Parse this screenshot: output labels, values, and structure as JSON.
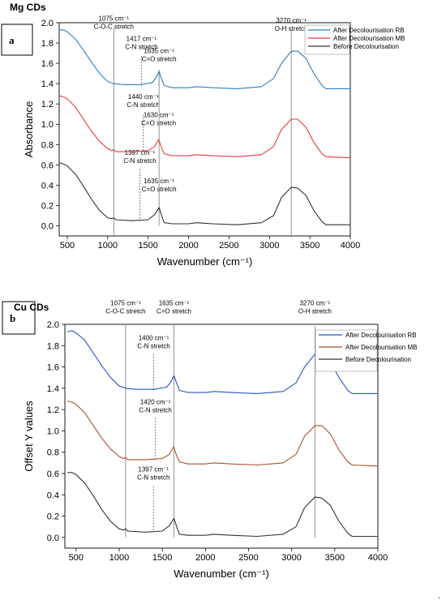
{
  "chart_data": [
    {
      "type": "line",
      "panel_letter": "a",
      "title": "Mg CDs",
      "xlabel": "Wavenumber (cm⁻¹)",
      "ylabel": "Absorbance",
      "xlim": [
        400,
        4000
      ],
      "ylim": [
        -0.1,
        2.0
      ],
      "x_ticks": [
        500,
        1000,
        1500,
        2000,
        2500,
        3000,
        3500,
        4000
      ],
      "y_ticks": [
        0.0,
        0.2,
        0.4,
        0.6,
        0.8,
        1.0,
        1.2,
        1.4,
        1.6,
        1.8,
        2.0
      ],
      "legend_position": "top-right",
      "series": [
        {
          "name": "After Decolourisation RB",
          "color": "#2e7fc4",
          "points": [
            [
              400,
              1.93
            ],
            [
              450,
              1.93
            ],
            [
              500,
              1.91
            ],
            [
              600,
              1.84
            ],
            [
              700,
              1.73
            ],
            [
              800,
              1.61
            ],
            [
              900,
              1.5
            ],
            [
              1000,
              1.42
            ],
            [
              1075,
              1.4
            ],
            [
              1200,
              1.39
            ],
            [
              1400,
              1.39
            ],
            [
              1550,
              1.41
            ],
            [
              1600,
              1.46
            ],
            [
              1635,
              1.52
            ],
            [
              1665,
              1.45
            ],
            [
              1700,
              1.38
            ],
            [
              1800,
              1.36
            ],
            [
              2000,
              1.36
            ],
            [
              2100,
              1.37
            ],
            [
              2300,
              1.36
            ],
            [
              2600,
              1.35
            ],
            [
              2900,
              1.37
            ],
            [
              3050,
              1.45
            ],
            [
              3150,
              1.6
            ],
            [
              3270,
              1.72
            ],
            [
              3350,
              1.72
            ],
            [
              3450,
              1.65
            ],
            [
              3550,
              1.5
            ],
            [
              3650,
              1.38
            ],
            [
              3700,
              1.35
            ],
            [
              4000,
              1.35
            ]
          ]
        },
        {
          "name": "After Decolourisation MB",
          "color": "#e8383c",
          "points": [
            [
              400,
              1.28
            ],
            [
              450,
              1.27
            ],
            [
              500,
              1.25
            ],
            [
              600,
              1.17
            ],
            [
              700,
              1.05
            ],
            [
              800,
              0.93
            ],
            [
              900,
              0.83
            ],
            [
              1000,
              0.76
            ],
            [
              1050,
              0.74
            ],
            [
              1075,
              0.75
            ],
            [
              1100,
              0.73
            ],
            [
              1300,
              0.73
            ],
            [
              1500,
              0.74
            ],
            [
              1580,
              0.78
            ],
            [
              1630,
              0.85
            ],
            [
              1670,
              0.76
            ],
            [
              1700,
              0.71
            ],
            [
              1800,
              0.69
            ],
            [
              2000,
              0.69
            ],
            [
              2100,
              0.7
            ],
            [
              2300,
              0.69
            ],
            [
              2600,
              0.68
            ],
            [
              2900,
              0.7
            ],
            [
              3050,
              0.78
            ],
            [
              3150,
              0.95
            ],
            [
              3270,
              1.05
            ],
            [
              3350,
              1.05
            ],
            [
              3450,
              0.97
            ],
            [
              3550,
              0.82
            ],
            [
              3650,
              0.71
            ],
            [
              3700,
              0.68
            ],
            [
              4000,
              0.67
            ]
          ]
        },
        {
          "name": "Before Decolourisation",
          "color": "#333333",
          "points": [
            [
              400,
              0.62
            ],
            [
              450,
              0.61
            ],
            [
              500,
              0.59
            ],
            [
              600,
              0.51
            ],
            [
              700,
              0.39
            ],
            [
              800,
              0.26
            ],
            [
              900,
              0.15
            ],
            [
              1000,
              0.08
            ],
            [
              1050,
              0.07
            ],
            [
              1075,
              0.08
            ],
            [
              1100,
              0.06
            ],
            [
              1300,
              0.05
            ],
            [
              1500,
              0.06
            ],
            [
              1580,
              0.11
            ],
            [
              1635,
              0.18
            ],
            [
              1680,
              0.07
            ],
            [
              1700,
              0.03
            ],
            [
              1800,
              0.02
            ],
            [
              2000,
              0.02
            ],
            [
              2100,
              0.03
            ],
            [
              2300,
              0.02
            ],
            [
              2600,
              0.01
            ],
            [
              2900,
              0.03
            ],
            [
              3050,
              0.1
            ],
            [
              3150,
              0.28
            ],
            [
              3270,
              0.38
            ],
            [
              3350,
              0.37
            ],
            [
              3450,
              0.3
            ],
            [
              3550,
              0.15
            ],
            [
              3650,
              0.04
            ],
            [
              3700,
              0.01
            ],
            [
              4000,
              0.01
            ]
          ]
        }
      ],
      "annotations": [
        {
          "x": 1075,
          "line": "solid",
          "line_top": 1.95,
          "label_lines": [
            "1075 cm⁻¹",
            "C-O-C stretch"
          ],
          "label_y": 2.02
        },
        {
          "x": 1417,
          "line": "dotted",
          "line_top": 1.67,
          "line_bottom": 1.38,
          "label_lines": [
            "1417 cm⁻¹",
            "C-N stretch"
          ],
          "label_y": 1.82
        },
        {
          "x": 1635,
          "line": "dotted",
          "line_top": 1.51,
          "line_bottom": 1.38,
          "label_lines": [
            "1635 cm⁻¹",
            "C=O stretch"
          ],
          "label_y": 1.7
        },
        {
          "x": 1440,
          "line": "dotted",
          "line_top": 1.09,
          "line_bottom": 0.73,
          "label_lines": [
            "1440 cm⁻¹",
            "C-N stretch"
          ],
          "label_y": 1.25
        },
        {
          "x": 1630,
          "line": "none",
          "label_lines": [
            "1630 cm⁻¹",
            "C=O stretch"
          ],
          "label_y": 1.07
        },
        {
          "x": 1397,
          "line": "dotted",
          "line_top": 0.56,
          "line_bottom": 0.05,
          "label_lines": [
            "1397 cm⁻¹",
            "C-N stretch"
          ],
          "label_y": 0.7
        },
        {
          "x": 1635,
          "line": "none",
          "label_lines": [
            "1635 cm⁻¹",
            "C=O stretch"
          ],
          "label_y": 0.42
        },
        {
          "x": 1635,
          "line": "solid",
          "line_top": 1.54,
          "line_bottom": 0.0,
          "label_lines": [],
          "label_y": 0
        },
        {
          "x": 3270,
          "line": "solid",
          "line_top": 1.93,
          "label_lines": [
            "3270 cm⁻¹",
            "O-H stretch"
          ],
          "label_y": 2.0
        }
      ]
    },
    {
      "type": "line",
      "panel_letter": "b",
      "title": "Cu CDs",
      "xlabel": "Wavenumber (cm⁻¹)",
      "ylabel": "Offset Y values",
      "xlim": [
        370,
        4000
      ],
      "ylim": [
        -0.1,
        2.0
      ],
      "x_ticks": [
        500,
        1000,
        1500,
        2000,
        2500,
        3000,
        3500,
        4000
      ],
      "y_ticks": [
        0.0,
        0.2,
        0.4,
        0.6,
        0.8,
        1.0,
        1.2,
        1.4,
        1.6,
        1.8,
        2.0
      ],
      "legend_position": "top-right",
      "series": [
        {
          "name": "After Decolourisation RB",
          "color": "#2a52c9",
          "points": [
            [
              400,
              1.93
            ],
            [
              450,
              1.94
            ],
            [
              500,
              1.92
            ],
            [
              600,
              1.85
            ],
            [
              700,
              1.73
            ],
            [
              800,
              1.61
            ],
            [
              900,
              1.5
            ],
            [
              1000,
              1.42
            ],
            [
              1075,
              1.4
            ],
            [
              1200,
              1.39
            ],
            [
              1400,
              1.39
            ],
            [
              1550,
              1.41
            ],
            [
              1600,
              1.46
            ],
            [
              1635,
              1.52
            ],
            [
              1665,
              1.45
            ],
            [
              1700,
              1.38
            ],
            [
              1800,
              1.36
            ],
            [
              2000,
              1.36
            ],
            [
              2100,
              1.37
            ],
            [
              2300,
              1.36
            ],
            [
              2600,
              1.35
            ],
            [
              2900,
              1.37
            ],
            [
              3050,
              1.45
            ],
            [
              3150,
              1.6
            ],
            [
              3270,
              1.72
            ],
            [
              3350,
              1.72
            ],
            [
              3450,
              1.65
            ],
            [
              3550,
              1.5
            ],
            [
              3650,
              1.38
            ],
            [
              3700,
              1.35
            ],
            [
              4000,
              1.35
            ]
          ]
        },
        {
          "name": "After Decolourisation MB",
          "color": "#a8502b",
          "points": [
            [
              400,
              1.28
            ],
            [
              450,
              1.27
            ],
            [
              500,
              1.25
            ],
            [
              600,
              1.17
            ],
            [
              700,
              1.05
            ],
            [
              800,
              0.93
            ],
            [
              900,
              0.83
            ],
            [
              1000,
              0.76
            ],
            [
              1050,
              0.74
            ],
            [
              1075,
              0.75
            ],
            [
              1100,
              0.73
            ],
            [
              1300,
              0.73
            ],
            [
              1500,
              0.74
            ],
            [
              1580,
              0.78
            ],
            [
              1630,
              0.85
            ],
            [
              1670,
              0.76
            ],
            [
              1700,
              0.71
            ],
            [
              1800,
              0.69
            ],
            [
              2000,
              0.69
            ],
            [
              2100,
              0.7
            ],
            [
              2300,
              0.69
            ],
            [
              2600,
              0.68
            ],
            [
              2900,
              0.7
            ],
            [
              3050,
              0.78
            ],
            [
              3150,
              0.95
            ],
            [
              3270,
              1.05
            ],
            [
              3350,
              1.05
            ],
            [
              3450,
              0.97
            ],
            [
              3550,
              0.82
            ],
            [
              3650,
              0.71
            ],
            [
              3700,
              0.68
            ],
            [
              4000,
              0.67
            ]
          ]
        },
        {
          "name": "Before Decolourisation",
          "color": "#333333",
          "points": [
            [
              400,
              0.61
            ],
            [
              450,
              0.61
            ],
            [
              500,
              0.59
            ],
            [
              600,
              0.51
            ],
            [
              700,
              0.39
            ],
            [
              800,
              0.26
            ],
            [
              900,
              0.15
            ],
            [
              1000,
              0.08
            ],
            [
              1050,
              0.07
            ],
            [
              1075,
              0.08
            ],
            [
              1100,
              0.06
            ],
            [
              1300,
              0.05
            ],
            [
              1500,
              0.06
            ],
            [
              1580,
              0.11
            ],
            [
              1635,
              0.18
            ],
            [
              1680,
              0.07
            ],
            [
              1700,
              0.03
            ],
            [
              1800,
              0.02
            ],
            [
              2000,
              0.02
            ],
            [
              2100,
              0.03
            ],
            [
              2300,
              0.02
            ],
            [
              2600,
              0.01
            ],
            [
              2900,
              0.03
            ],
            [
              3050,
              0.1
            ],
            [
              3150,
              0.28
            ],
            [
              3270,
              0.38
            ],
            [
              3350,
              0.37
            ],
            [
              3450,
              0.3
            ],
            [
              3550,
              0.15
            ],
            [
              3650,
              0.04
            ],
            [
              3700,
              0.01
            ],
            [
              4000,
              0.01
            ]
          ]
        }
      ],
      "annotations": [
        {
          "x": 1075,
          "line": "solid",
          "line_top": 2.0,
          "line_bottom": 0.0,
          "label_lines": [
            "1075 cm⁻¹",
            "C-O-C stretch"
          ],
          "label_y": 2.18
        },
        {
          "x": 1635,
          "line": "solid",
          "line_top": 2.0,
          "line_bottom": 0.0,
          "label_lines": [
            "1635 cm⁻¹",
            "C=O stretch"
          ],
          "label_y": 2.18
        },
        {
          "x": 1400,
          "line": "dotted",
          "line_top": 1.72,
          "line_bottom": 1.38,
          "label_lines": [
            "1400 cm⁻¹",
            "C-N stretch"
          ],
          "label_y": 1.85
        },
        {
          "x": 1420,
          "line": "dotted",
          "line_top": 1.12,
          "line_bottom": 0.73,
          "label_lines": [
            "1420 cm⁻¹",
            "C-N stretch"
          ],
          "label_y": 1.25
        },
        {
          "x": 1397,
          "line": "dotted",
          "line_top": 0.48,
          "line_bottom": 0.05,
          "label_lines": [
            "1397 cm⁻¹",
            "C-N stretch"
          ],
          "label_y": 0.62
        },
        {
          "x": 3270,
          "line": "solid",
          "line_top": 1.98,
          "line_bottom": 0.0,
          "label_lines": [
            "3270 cm⁻¹",
            "O-H stretch"
          ],
          "label_y": 2.18
        }
      ]
    }
  ]
}
